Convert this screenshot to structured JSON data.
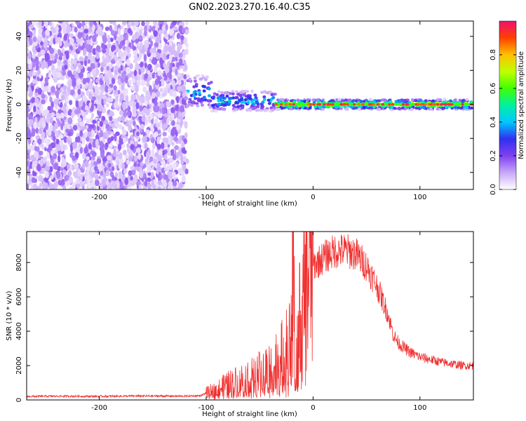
{
  "chart_data": [
    {
      "type": "heatmap",
      "title": "GN02.2023.270.16.40.C35",
      "xlabel": "Height of straight line (km)",
      "ylabel": "Frequency (Hz)",
      "xlim": [
        -268,
        150
      ],
      "ylim": [
        -50,
        49
      ],
      "xticks": [
        -200,
        -100,
        0,
        100
      ],
      "yticks": [
        -40,
        -20,
        0,
        20,
        40
      ],
      "colorbar": {
        "label": "Normalized spectral amplitude",
        "range": [
          0,
          1
        ],
        "ticks": [
          0.0,
          0.2,
          0.4,
          0.6,
          0.8
        ],
        "colormap": [
          "#ffffff",
          "#c8a8f8",
          "#8040f0",
          "#3030f0",
          "#00c8ff",
          "#00f0a0",
          "#40ff00",
          "#c0ff00",
          "#ffc000",
          "#ff4000",
          "#f01070"
        ]
      },
      "regions": [
        {
          "name": "noise",
          "x_range": [
            -268,
            -118
          ],
          "freq_range": [
            -50,
            49
          ],
          "amplitude": 0.05
        },
        {
          "name": "signal-start",
          "x_range": [
            -118,
            -95
          ],
          "freq_center": 7,
          "freq_halfwidth": 10,
          "amplitude": 0.4
        },
        {
          "name": "signal-taper",
          "x_range": [
            -95,
            -35
          ],
          "freq_center": 2,
          "freq_halfwidth": 6,
          "amplitude": 0.45
        },
        {
          "name": "signal-line",
          "x_range": [
            -35,
            150
          ],
          "freq_center": 0,
          "freq_halfwidth": 3,
          "amplitude": 0.9
        }
      ]
    },
    {
      "type": "line",
      "xlabel": "Height of straight line (km)",
      "ylabel": "SNR (10 * v/v)",
      "xlim": [
        -268,
        150
      ],
      "ylim": [
        0,
        9800
      ],
      "xticks": [
        -200,
        -100,
        0,
        100
      ],
      "yticks": [
        0,
        2000,
        4000,
        6000,
        8000
      ],
      "color": "#f03030",
      "series": [
        {
          "x": [
            -268,
            -240,
            -200,
            -160,
            -120,
            -105,
            -100,
            -90,
            -80,
            -70,
            -60,
            -50,
            -40,
            -30,
            -25,
            -20,
            -19,
            -17,
            -15,
            -10,
            -5,
            0,
            10,
            20,
            30,
            40,
            50,
            60,
            70,
            75,
            80,
            90,
            100,
            120,
            140,
            150
          ],
          "y": [
            200,
            220,
            210,
            230,
            220,
            250,
            400,
            600,
            900,
            1100,
            1300,
            1500,
            1900,
            2400,
            2800,
            3500,
            9800,
            4000,
            3600,
            5200,
            7200,
            7800,
            8300,
            8650,
            8700,
            8500,
            7800,
            6600,
            5000,
            3800,
            3300,
            2800,
            2500,
            2200,
            2000,
            2000
          ]
        }
      ]
    }
  ]
}
